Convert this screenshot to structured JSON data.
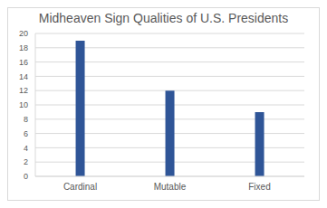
{
  "chart_data": {
    "type": "bar",
    "title": "Midheaven Sign Qualities of U.S. Presidents",
    "categories": [
      "Cardinal",
      "Mutable",
      "Fixed"
    ],
    "values": [
      19,
      12,
      9
    ],
    "color": "#2f5597",
    "ylim": [
      0,
      20
    ],
    "yticks": [
      0,
      2,
      4,
      6,
      8,
      10,
      12,
      14,
      16,
      18,
      20
    ],
    "grid": true
  }
}
